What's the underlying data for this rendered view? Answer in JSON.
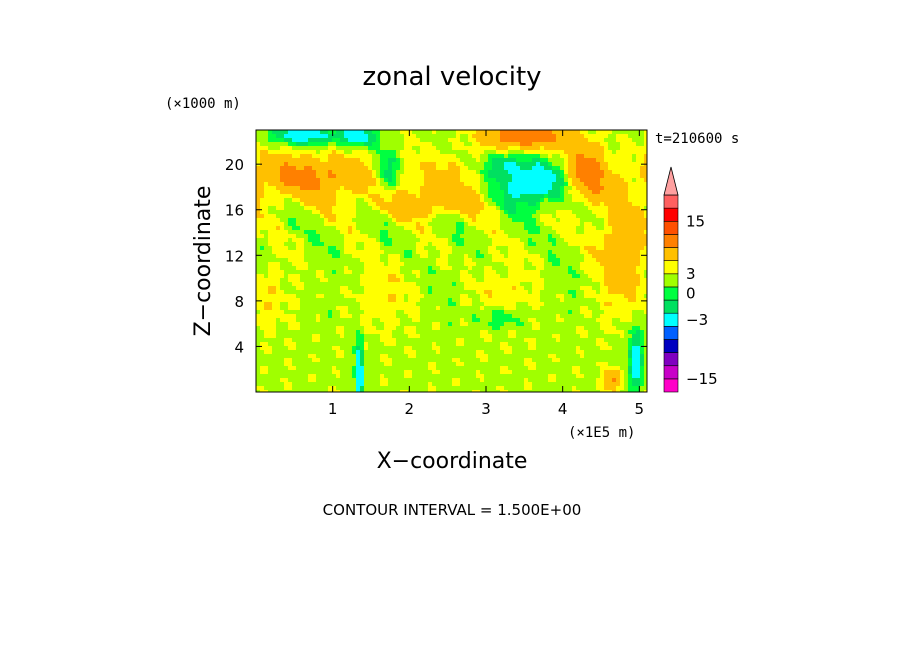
{
  "chart_data": {
    "type": "heatmap",
    "title": "zonal velocity",
    "xlabel": "X−coordinate",
    "ylabel": "Z−coordinate",
    "x_unit": "(×1E5 m)",
    "y_unit": "(×1000 m)",
    "time_label": "t=210600 s",
    "contour_interval_text": "CONTOUR INTERVAL = 1.500E+00",
    "xlim": [
      0,
      5.1
    ],
    "ylim": [
      0,
      23
    ],
    "x_ticks": [
      1,
      2,
      3,
      4,
      5
    ],
    "y_ticks": [
      4,
      8,
      12,
      16,
      20
    ],
    "x_tick_labels": [
      "1",
      "2",
      "3",
      "4",
      "5"
    ],
    "y_tick_labels": [
      "4",
      "8",
      "12",
      "16",
      "20"
    ],
    "grid": false,
    "colorbar": {
      "levels": [
        -18,
        -15,
        -12,
        -9,
        -6,
        -3,
        -1.5,
        0,
        1.5,
        3,
        6,
        9,
        12,
        15,
        18
      ],
      "colors": [
        "#ff00c8",
        "#c800c8",
        "#8000c0",
        "#0000c0",
        "#0060ff",
        "#00ffff",
        "#00e060",
        "#00ff40",
        "#a0ff00",
        "#ffff00",
        "#ffc000",
        "#ff8000",
        "#ff5000",
        "#ff0000",
        "#ff6060",
        "#ffa0a0"
      ],
      "tick_values": [
        15,
        3,
        0,
        -3,
        -15
      ],
      "tick_labels": [
        "15",
        "3",
        "0",
        "−3",
        "−15"
      ],
      "extend": "max"
    }
  }
}
